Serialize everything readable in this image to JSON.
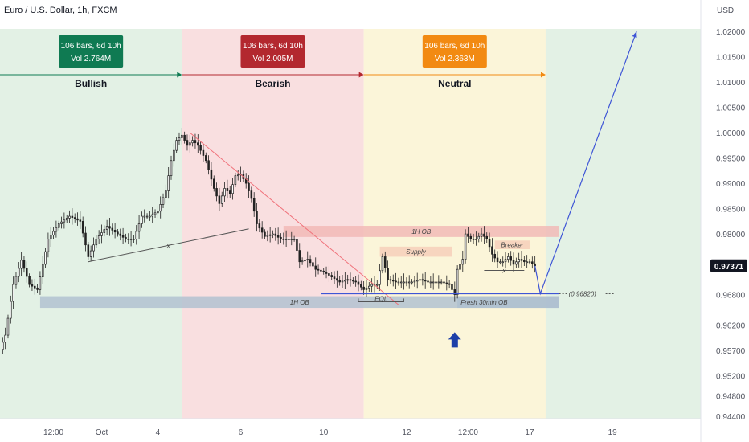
{
  "title": "Euro / U.S. Dollar, 1h, FXCM",
  "colors": {
    "bullish_bg": "#e3f1e5",
    "bearish_bg": "#f9dfe0",
    "neutral_bg": "#fbf5d9",
    "after_bg": "#e3f1e5",
    "bullish_accent": "#0f7a52",
    "bearish_accent": "#b3282f",
    "neutral_accent": "#f28a12",
    "candle": "#222222",
    "trend_red": "#f0717a",
    "trend_dark": "#555555",
    "ob_red": "#f1b7b4",
    "ob_blue": "#aebfd0",
    "supply": "#f6cdb8",
    "projection": "#3e55d6",
    "level_line": "#3e55d6",
    "arrow": "#1d3fa8"
  },
  "chart_data": {
    "type": "candlestick",
    "title": "Euro / U.S. Dollar, 1h, FXCM",
    "currency_label": "USD",
    "ylim": [
      0.9435,
      1.0205
    ],
    "y_ticks": [
      1.02,
      1.015,
      1.01,
      1.005,
      1.0,
      0.995,
      0.99,
      0.985,
      0.98,
      0.9737,
      0.968,
      0.962,
      0.957,
      0.952,
      0.948,
      0.944
    ],
    "y_tick_labels": [
      "1.02000",
      "1.01500",
      "1.01000",
      "1.00500",
      "1.00000",
      "0.99500",
      "0.99000",
      "0.98500",
      "0.98000",
      "0.97371",
      "0.96800",
      "0.96200",
      "0.95700",
      "0.95200",
      "0.94800",
      "0.94400"
    ],
    "current_price_label": "0.97371",
    "x_ticks": [
      {
        "label": "12:00",
        "bar": 20
      },
      {
        "label": "Oct",
        "bar": 38
      },
      {
        "label": "4",
        "bar": 59
      },
      {
        "label": "6",
        "bar": 90
      },
      {
        "label": "10",
        "bar": 121
      },
      {
        "label": "12",
        "bar": 152
      },
      {
        "label": "12:00",
        "bar": 175
      },
      {
        "label": "17",
        "bar": 198
      },
      {
        "label": "19",
        "bar": 229
      }
    ],
    "x_range": [
      0,
      262
    ],
    "zones": [
      {
        "name": "Bullish",
        "start": 0,
        "end": 68,
        "stats": [
          "106 bars, 6d 10h",
          "Vol 2.764M"
        ],
        "bg": "bullish_bg",
        "accent": "bullish_accent"
      },
      {
        "name": "Bearish",
        "start": 68,
        "end": 136,
        "stats": [
          "106 bars, 6d 10h",
          "Vol 2.005M"
        ],
        "bg": "bearish_bg",
        "accent": "bearish_accent"
      },
      {
        "name": "Neutral",
        "start": 136,
        "end": 204,
        "stats": [
          "106 bars, 6d 10h",
          "Vol 2.363M"
        ],
        "bg": "neutral_bg",
        "accent": "neutral_accent"
      }
    ],
    "close_anchors": [
      [
        0,
        0.9572
      ],
      [
        2,
        0.96
      ],
      [
        5,
        0.97
      ],
      [
        8,
        0.9748
      ],
      [
        11,
        0.97
      ],
      [
        14,
        0.969
      ],
      [
        18,
        0.979
      ],
      [
        22,
        0.982
      ],
      [
        26,
        0.9835
      ],
      [
        30,
        0.9825
      ],
      [
        33,
        0.9755
      ],
      [
        36,
        0.979
      ],
      [
        40,
        0.9815
      ],
      [
        44,
        0.98
      ],
      [
        47,
        0.979
      ],
      [
        50,
        0.979
      ],
      [
        53,
        0.9835
      ],
      [
        56,
        0.9835
      ],
      [
        59,
        0.9845
      ],
      [
        62,
        0.9885
      ],
      [
        64,
        0.9945
      ],
      [
        66,
        0.9985
      ],
      [
        68,
        0.9995
      ],
      [
        70,
        0.9975
      ],
      [
        72,
        0.9985
      ],
      [
        74,
        0.9975
      ],
      [
        77,
        0.9945
      ],
      [
        80,
        0.989
      ],
      [
        82,
        0.986
      ],
      [
        84,
        0.989
      ],
      [
        86,
        0.988
      ],
      [
        88,
        0.9915
      ],
      [
        90,
        0.9918
      ],
      [
        92,
        0.99
      ],
      [
        94,
        0.987
      ],
      [
        96,
        0.982
      ],
      [
        99,
        0.9795
      ],
      [
        102,
        0.98
      ],
      [
        105,
        0.979
      ],
      [
        108,
        0.979
      ],
      [
        110,
        0.979
      ],
      [
        112,
        0.9745
      ],
      [
        115,
        0.975
      ],
      [
        118,
        0.973
      ],
      [
        121,
        0.9725
      ],
      [
        124,
        0.9715
      ],
      [
        127,
        0.9705
      ],
      [
        130,
        0.971
      ],
      [
        133,
        0.9705
      ],
      [
        136,
        0.969
      ],
      [
        139,
        0.97
      ],
      [
        141,
        0.97
      ],
      [
        143,
        0.9755
      ],
      [
        145,
        0.971
      ],
      [
        148,
        0.9705
      ],
      [
        151,
        0.9705
      ],
      [
        154,
        0.9705
      ],
      [
        157,
        0.971
      ],
      [
        160,
        0.9705
      ],
      [
        163,
        0.9705
      ],
      [
        165,
        0.9705
      ],
      [
        168,
        0.97
      ],
      [
        170,
        0.968
      ],
      [
        171,
        0.973
      ],
      [
        173,
        0.975
      ],
      [
        174,
        0.98
      ],
      [
        176,
        0.979
      ],
      [
        178,
        0.979
      ],
      [
        180,
        0.98
      ],
      [
        182,
        0.979
      ],
      [
        184,
        0.976
      ],
      [
        186,
        0.9745
      ],
      [
        188,
        0.9745
      ],
      [
        190,
        0.9755
      ],
      [
        192,
        0.974
      ],
      [
        194,
        0.975
      ],
      [
        196,
        0.9745
      ],
      [
        198,
        0.9745
      ],
      [
        200,
        0.9737
      ]
    ],
    "trendlines": [
      {
        "name": "bearish-trendline",
        "from": [
          71,
          1.0
        ],
        "to": [
          149,
          0.966
        ],
        "color": "trend_red"
      },
      {
        "name": "bullish-trendline-x",
        "from": [
          33,
          0.9745
        ],
        "to": [
          93,
          0.981
        ],
        "color": "trend_dark",
        "label": "x"
      },
      {
        "name": "breaker-trendline-x",
        "from": [
          181,
          0.9728
        ],
        "to": [
          196,
          0.9728
        ],
        "color": "trend_dark",
        "label": "x"
      }
    ],
    "boxes": [
      {
        "name": "1h-ob-upper",
        "label": "1H OB",
        "x1": 106,
        "x2": 209,
        "top": 0.9816,
        "bottom": 0.9794,
        "color": "ob_red"
      },
      {
        "name": "1h-ob-lower",
        "label": "1H OB",
        "x1": 15,
        "x2": 209,
        "top": 0.9677,
        "bottom": 0.9654,
        "color": "ob_blue"
      },
      {
        "name": "supply",
        "label": "Supply",
        "x1": 142,
        "x2": 169,
        "top": 0.9775,
        "bottom": 0.9755,
        "color": "supply"
      },
      {
        "name": "breaker",
        "label": "Breaker",
        "x1": 185,
        "x2": 198,
        "top": 0.9787,
        "bottom": 0.977,
        "color": "supply"
      },
      {
        "name": "fresh-30min-ob",
        "label": "Fresh 30min OB",
        "x1": 171,
        "x2": 209,
        "top": 0.9677,
        "bottom": 0.9654,
        "color": "ob_blue"
      }
    ],
    "level": {
      "name": "level-0.96820",
      "price": 0.9682,
      "x1": 120,
      "x2": 209,
      "label": "(0.96820)"
    },
    "eql": {
      "label": "EQL",
      "x1": 134,
      "x2": 151,
      "price": 0.9682
    },
    "projection": [
      [
        200,
        0.9737
      ],
      [
        202,
        0.9682
      ],
      [
        238,
        1.02
      ]
    ],
    "arrow_up": {
      "bar": 170,
      "price": 0.9625
    }
  }
}
